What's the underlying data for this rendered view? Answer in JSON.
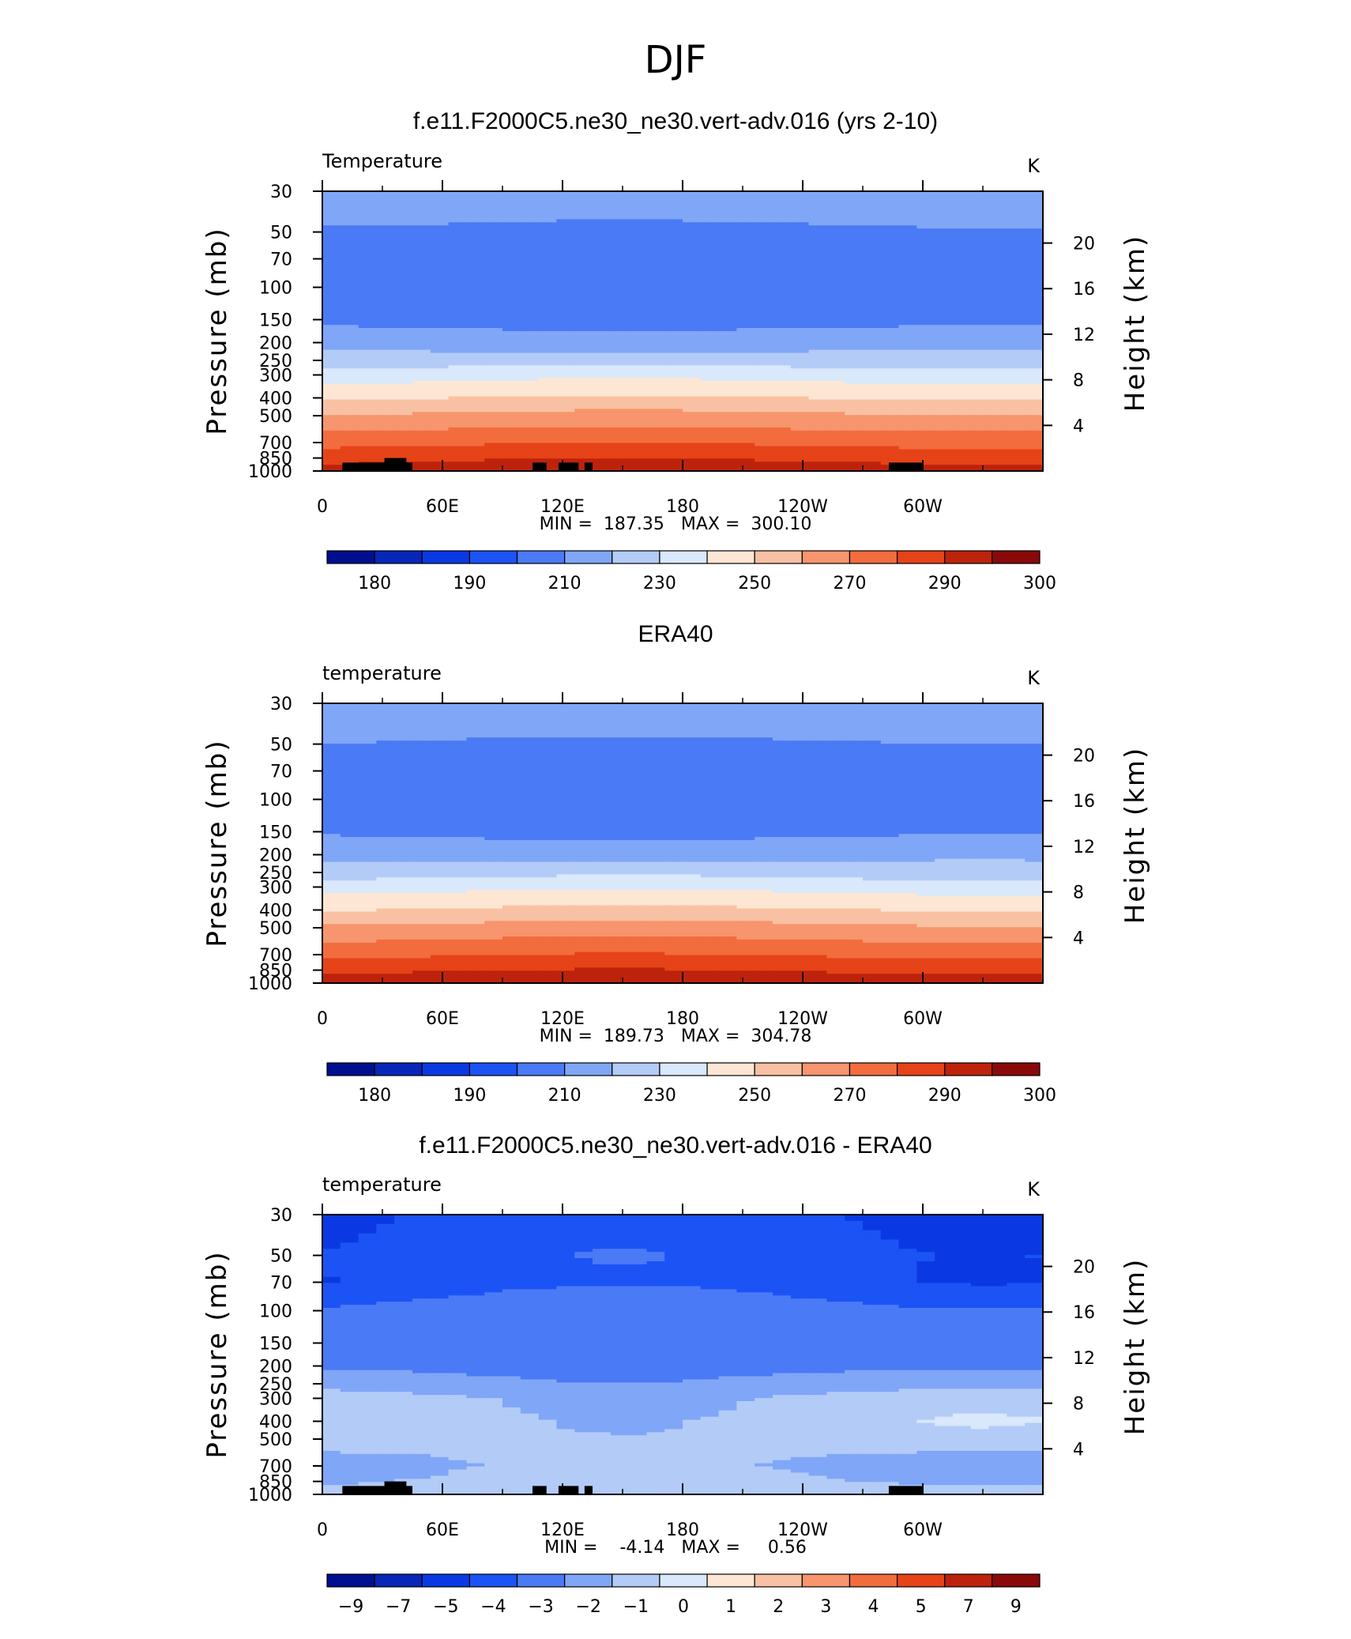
{
  "figure_title": "DJF",
  "chart_data": [
    {
      "type": "heatmap",
      "panel_title": "f.e11.F2000C5.ne30_ne30.vert-adv.016 (yrs 2-10)",
      "variable_label": "Temperature",
      "units": "K",
      "x_tick_labels": [
        "0",
        "60E",
        "120E",
        "180",
        "120W",
        "60W"
      ],
      "y_tick_labels": [
        "30",
        "50",
        "70",
        "100",
        "150",
        "200",
        "250",
        "300",
        "400",
        "500",
        "700",
        "850",
        "1000"
      ],
      "ylabel": "Pressure (mb)",
      "ylabel_right": "Height (km)",
      "y_right_tick_labels": [
        "20",
        "16",
        "12",
        "8",
        "4"
      ],
      "stats_text": "MIN =  187.35   MAX =  300.10",
      "min": 187.35,
      "max": 300.1,
      "colorbar_labels": [
        "180",
        "190",
        "210",
        "230",
        "250",
        "270",
        "290",
        "300"
      ],
      "profile_levels": [
        {
          "pressure": 30,
          "value": 218
        },
        {
          "pressure": 50,
          "value": 208
        },
        {
          "pressure": 70,
          "value": 202
        },
        {
          "pressure": 100,
          "value": 201
        },
        {
          "pressure": 150,
          "value": 207
        },
        {
          "pressure": 200,
          "value": 215
        },
        {
          "pressure": 250,
          "value": 225
        },
        {
          "pressure": 300,
          "value": 236
        },
        {
          "pressure": 400,
          "value": 250
        },
        {
          "pressure": 500,
          "value": 262
        },
        {
          "pressure": 700,
          "value": 278
        },
        {
          "pressure": 850,
          "value": 288
        },
        {
          "pressure": 1000,
          "value": 296
        }
      ]
    },
    {
      "type": "heatmap",
      "panel_title": "ERA40",
      "variable_label": "temperature",
      "units": "K",
      "x_tick_labels": [
        "0",
        "60E",
        "120E",
        "180",
        "120W",
        "60W"
      ],
      "y_tick_labels": [
        "30",
        "50",
        "70",
        "100",
        "150",
        "200",
        "250",
        "300",
        "400",
        "500",
        "700",
        "850",
        "1000"
      ],
      "ylabel": "Pressure (mb)",
      "ylabel_right": "Height (km)",
      "y_right_tick_labels": [
        "20",
        "16",
        "12",
        "8",
        "4"
      ],
      "stats_text": "MIN =  189.73   MAX =  304.78",
      "min": 189.73,
      "max": 304.78,
      "colorbar_labels": [
        "180",
        "190",
        "210",
        "230",
        "250",
        "270",
        "290",
        "300"
      ],
      "profile_levels": [
        {
          "pressure": 30,
          "value": 219
        },
        {
          "pressure": 50,
          "value": 209
        },
        {
          "pressure": 70,
          "value": 203
        },
        {
          "pressure": 100,
          "value": 202
        },
        {
          "pressure": 150,
          "value": 208
        },
        {
          "pressure": 200,
          "value": 216
        },
        {
          "pressure": 250,
          "value": 226
        },
        {
          "pressure": 300,
          "value": 237
        },
        {
          "pressure": 400,
          "value": 251
        },
        {
          "pressure": 500,
          "value": 263
        },
        {
          "pressure": 700,
          "value": 279
        },
        {
          "pressure": 850,
          "value": 289
        },
        {
          "pressure": 1000,
          "value": 298
        }
      ]
    },
    {
      "type": "heatmap",
      "panel_title": "f.e11.F2000C5.ne30_ne30.vert-adv.016 - ERA40",
      "variable_label": "temperature",
      "units": "K",
      "x_tick_labels": [
        "0",
        "60E",
        "120E",
        "180",
        "120W",
        "60W"
      ],
      "y_tick_labels": [
        "30",
        "50",
        "70",
        "100",
        "150",
        "200",
        "250",
        "300",
        "400",
        "500",
        "700",
        "850",
        "1000"
      ],
      "ylabel": "Pressure (mb)",
      "ylabel_right": "Height (km)",
      "y_right_tick_labels": [
        "20",
        "16",
        "12",
        "8",
        "4"
      ],
      "stats_text": "MIN =    -4.14   MAX =     0.56",
      "min": -4.14,
      "max": 0.56,
      "colorbar_labels": [
        "−9",
        "−7",
        "−5",
        "−4",
        "−3",
        "−2",
        "−1",
        "0",
        "1",
        "2",
        "3",
        "4",
        "5",
        "7",
        "9"
      ],
      "profile_levels": [
        {
          "pressure": 30,
          "value": -3.8
        },
        {
          "pressure": 50,
          "value": -3.5
        },
        {
          "pressure": 70,
          "value": -3.6
        },
        {
          "pressure": 100,
          "value": -2.5
        },
        {
          "pressure": 150,
          "value": -2.6
        },
        {
          "pressure": 200,
          "value": -2.2
        },
        {
          "pressure": 250,
          "value": -1.7
        },
        {
          "pressure": 300,
          "value": -0.8
        },
        {
          "pressure": 400,
          "value": -0.5
        },
        {
          "pressure": 500,
          "value": -0.6
        },
        {
          "pressure": 700,
          "value": -1.2
        },
        {
          "pressure": 850,
          "value": -0.8
        },
        {
          "pressure": 1000,
          "value": -0.6
        }
      ]
    }
  ],
  "colors": {
    "temperature_scale": [
      "#000f8f",
      "#0826b8",
      "#0a39e3",
      "#1c53f5",
      "#4a7af5",
      "#80a6f7",
      "#b3cbf7",
      "#d9e8fa",
      "#fde6d4",
      "#f9c1a3",
      "#f7956e",
      "#f26c3e",
      "#e64318",
      "#bd230c",
      "#8a0a0a"
    ],
    "difference_scale": [
      "#000f8f",
      "#0826b8",
      "#0a39e3",
      "#1c53f5",
      "#4a7af5",
      "#80a6f7",
      "#b3cbf7",
      "#d9e8fa",
      "#fde6d4",
      "#f9c1a3",
      "#f7956e",
      "#f26c3e",
      "#e64318",
      "#bd230c",
      "#8a0a0a"
    ],
    "terrain": "#000000"
  }
}
